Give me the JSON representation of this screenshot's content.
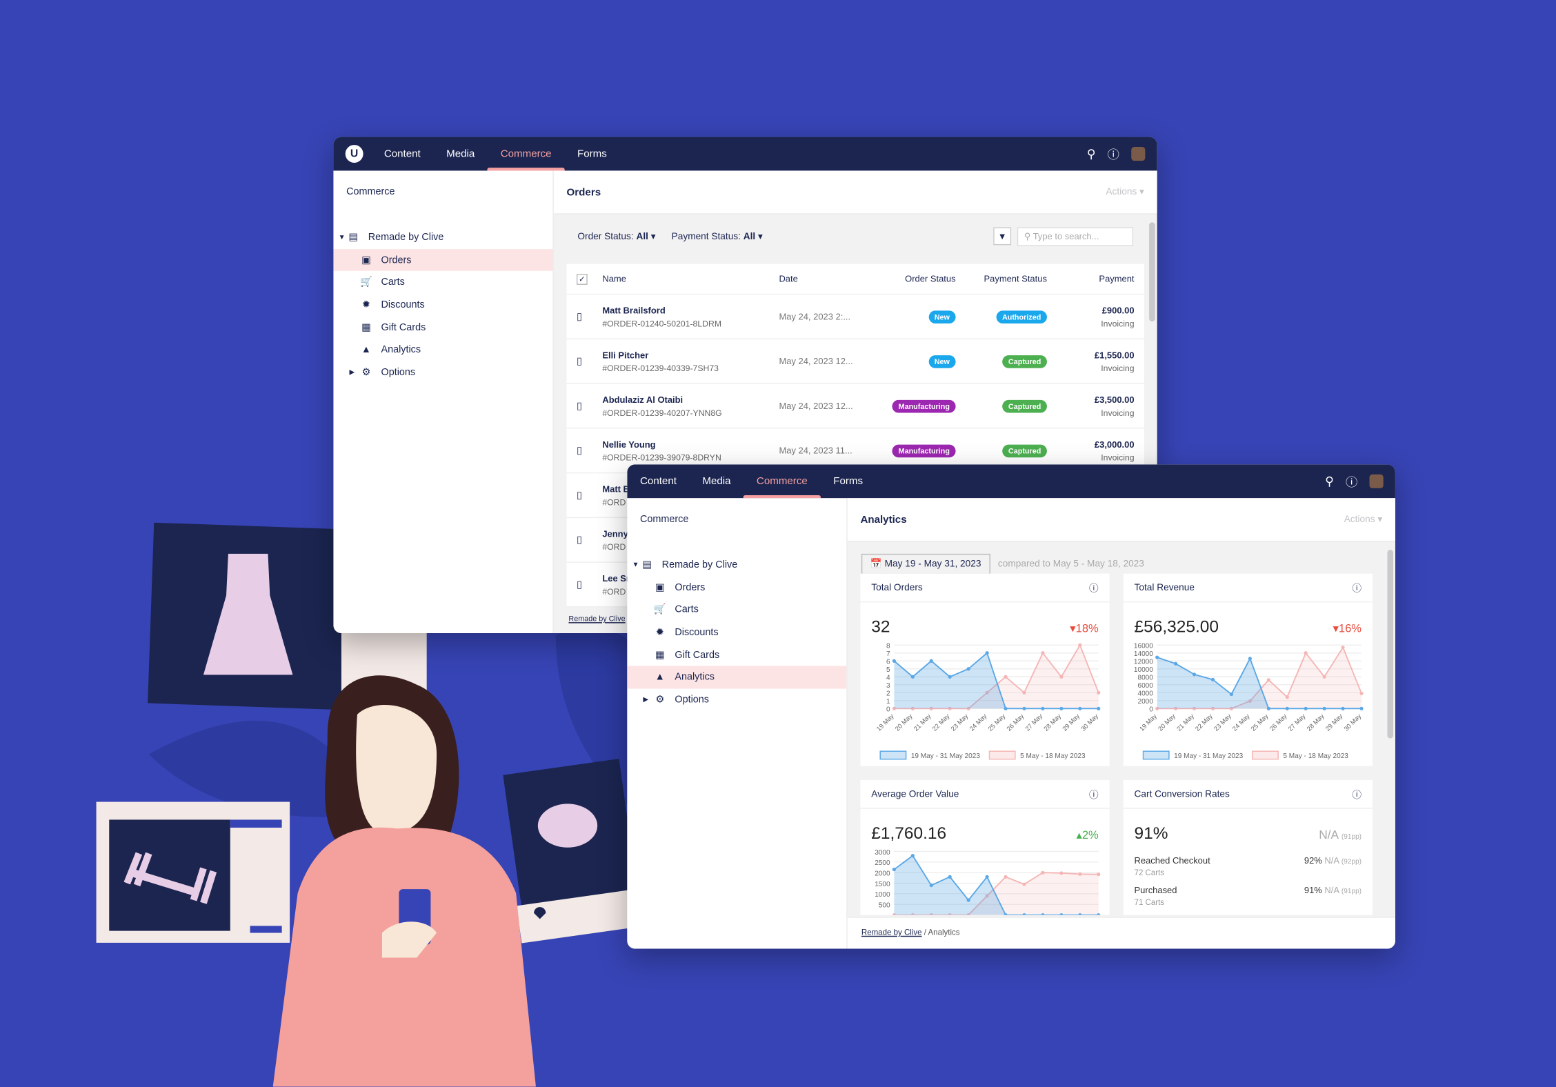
{
  "colors": {
    "bg": "#3744b5",
    "topbar": "#1b2550",
    "accent": "#f5a1a1",
    "blue": "#5aa7e6",
    "pink": "#f5b5b5",
    "new": "#1aa7ec",
    "authorized": "#1aa7ec",
    "captured": "#4caf50",
    "manufacturing": "#9c27b0"
  },
  "nav": {
    "items": [
      "Content",
      "Media",
      "Commerce",
      "Forms"
    ],
    "active": "Commerce",
    "logo": "U"
  },
  "sidebar": {
    "title": "Commerce",
    "store": "Remade by Clive",
    "items": [
      {
        "label": "Orders",
        "icon": "inbox-icon"
      },
      {
        "label": "Carts",
        "icon": "cart-icon"
      },
      {
        "label": "Discounts",
        "icon": "discount-icon"
      },
      {
        "label": "Gift Cards",
        "icon": "gift-card-icon"
      },
      {
        "label": "Analytics",
        "icon": "chart-icon"
      },
      {
        "label": "Options",
        "icon": "gear-icon"
      }
    ]
  },
  "orders": {
    "title": "Orders",
    "actions": "Actions",
    "filters": {
      "order_label": "Order Status:",
      "order_value": "All",
      "payment_label": "Payment Status:",
      "payment_value": "All"
    },
    "search_placeholder": "Type to search...",
    "columns": [
      "Name",
      "Date",
      "Order Status",
      "Payment Status",
      "Payment"
    ],
    "rows": [
      {
        "name": "Matt Brailsford",
        "id": "#ORDER-01240-50201-8LDRM",
        "date": "May 24, 2023 2:...",
        "order_status": "New",
        "payment_status": "Authorized",
        "amount": "£900.00",
        "method": "Invoicing"
      },
      {
        "name": "Elli Pitcher",
        "id": "#ORDER-01239-40339-7SH73",
        "date": "May 24, 2023 12...",
        "order_status": "New",
        "payment_status": "Captured",
        "amount": "£1,550.00",
        "method": "Invoicing"
      },
      {
        "name": "Abdulaziz Al Otaibi",
        "id": "#ORDER-01239-40207-YNN8G",
        "date": "May 24, 2023 12...",
        "order_status": "Manufacturing",
        "payment_status": "Captured",
        "amount": "£3,500.00",
        "method": "Invoicing"
      },
      {
        "name": "Nellie Young",
        "id": "#ORDER-01239-39079-8DRYN",
        "date": "May 24, 2023 11...",
        "order_status": "Manufacturing",
        "payment_status": "Captured",
        "amount": "£3,000.00",
        "method": "Invoicing"
      },
      {
        "name": "Matt B",
        "id": "#ORD"
      },
      {
        "name": "Jenny",
        "id": "#ORD"
      },
      {
        "name": "Lee Sn",
        "id": "#ORD"
      }
    ],
    "crumb": "Remade by Clive"
  },
  "analytics": {
    "title": "Analytics",
    "actions": "Actions",
    "date_range": "May 19 - May 31, 2023",
    "compared": "compared to May 5 - May 18, 2023",
    "crumb": [
      "Remade by Clive",
      "Analytics"
    ],
    "total_orders": {
      "title": "Total Orders",
      "value": "32",
      "change": "18%",
      "direction": "down"
    },
    "total_revenue": {
      "title": "Total Revenue",
      "value": "£56,325.00",
      "change": "16%",
      "direction": "down"
    },
    "aov": {
      "title": "Average Order Value",
      "value": "£1,760.16",
      "change": "2%",
      "direction": "up"
    },
    "conversion": {
      "title": "Cart Conversion Rates",
      "value": "91%",
      "na": "N/A",
      "na_pp": "(91pp)",
      "rows": [
        {
          "label": "Reached Checkout",
          "sub": "72 Carts",
          "pct": "92%",
          "na": "N/A",
          "pp": "(92pp)"
        },
        {
          "label": "Purchased",
          "sub": "71 Carts",
          "pct": "91%",
          "na": "N/A",
          "pp": "(91pp)"
        }
      ]
    }
  },
  "chart_data": [
    {
      "type": "area",
      "title": "Total Orders",
      "categories": [
        "19 May",
        "20 May",
        "21 May",
        "22 May",
        "23 May",
        "24 May",
        "25 May",
        "26 May",
        "27 May",
        "28 May",
        "29 May",
        "30 May"
      ],
      "ylim": [
        0,
        8
      ],
      "yticks": [
        0,
        1,
        2,
        3,
        4,
        5,
        6,
        7,
        8
      ],
      "legend": "bottom",
      "series": [
        {
          "name": "19 May - 31 May 2023",
          "values": [
            6,
            4,
            6,
            4,
            5,
            7,
            0,
            0,
            0,
            0,
            0,
            0
          ]
        },
        {
          "name": "5 May - 18 May 2023",
          "values": [
            0,
            0,
            0,
            0,
            0,
            2,
            4,
            2,
            7,
            4,
            8,
            2
          ]
        }
      ]
    },
    {
      "type": "area",
      "title": "Total Revenue",
      "categories": [
        "19 May",
        "20 May",
        "21 May",
        "22 May",
        "23 May",
        "24 May",
        "25 May",
        "26 May",
        "27 May",
        "28 May",
        "29 May",
        "30 May"
      ],
      "ylim": [
        0,
        16000
      ],
      "yticks": [
        0,
        2000,
        4000,
        6000,
        8000,
        10000,
        12000,
        14000,
        16000
      ],
      "legend": "bottom",
      "series": [
        {
          "name": "19 May - 31 May 2023",
          "values": [
            12900,
            11300,
            8600,
            7300,
            3600,
            12600,
            0,
            0,
            0,
            0,
            0,
            0
          ]
        },
        {
          "name": "5 May - 18 May 2023",
          "values": [
            0,
            0,
            0,
            0,
            0,
            1900,
            7200,
            2900,
            14000,
            8000,
            15400,
            3800
          ]
        }
      ]
    },
    {
      "type": "area",
      "title": "Average Order Value",
      "ylim": [
        0,
        3000
      ],
      "yticks": [
        500,
        1000,
        1500,
        2000,
        2500,
        3000
      ],
      "series": [
        {
          "name": "19 May - 31 May 2023",
          "values": [
            2150,
            2800,
            1400,
            1800,
            700,
            1800,
            0,
            0,
            0,
            0,
            0,
            0
          ]
        },
        {
          "name": "5 May - 18 May 2023",
          "values": [
            0,
            0,
            0,
            0,
            0,
            900,
            1800,
            1450,
            2000,
            1980,
            1930,
            1920
          ]
        }
      ]
    }
  ]
}
